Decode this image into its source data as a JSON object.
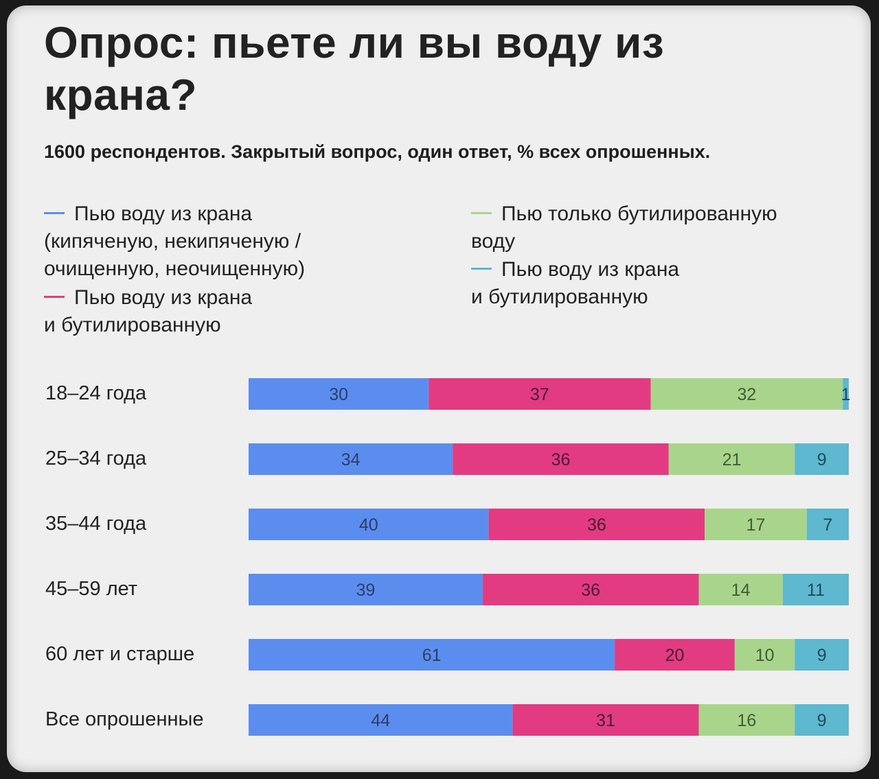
{
  "header": {
    "title": "Опрос: пьете ли вы воду из крана?",
    "subtitle": "1600 респондентов. Закрытый вопрос, один ответ, % всех опрошенных."
  },
  "legend": [
    {
      "label": "Пью воду из крана\n(кипяченую, некипяченую /\nочищенную, неочищенную)",
      "color": "#5b8def"
    },
    {
      "label": "Пью воду из крана\nи бутилированную",
      "color": "#e23b82"
    },
    {
      "label": "Пью только бутилированную\nводу",
      "color": "#a8d58b"
    },
    {
      "label": "Пью воду из крана\nи бутилированную",
      "color": "#5db8d0"
    }
  ],
  "chart_data": {
    "type": "bar",
    "orientation": "horizontal",
    "stacked": true,
    "categories": [
      "18–24 года",
      "25–34 года",
      "35–44 года",
      "45–59 лет",
      "60 лет и старше",
      "Все опрошенные"
    ],
    "series": [
      {
        "name": "Пью воду из крана (кипяченую, некипяченую / очищенную, неочищенную)",
        "color": "#5b8def",
        "values": [
          30,
          34,
          40,
          39,
          61,
          44
        ]
      },
      {
        "name": "Пью воду из крана и бутилированную",
        "color": "#e23b82",
        "values": [
          37,
          36,
          36,
          36,
          20,
          31
        ]
      },
      {
        "name": "Пью только бутилированную воду",
        "color": "#a8d58b",
        "values": [
          32,
          21,
          17,
          14,
          10,
          16
        ]
      },
      {
        "name": "Пью воду из крана и бутилированную",
        "color": "#5db8d0",
        "values": [
          1,
          9,
          7,
          11,
          9,
          9
        ]
      }
    ],
    "xlim": [
      0,
      100
    ],
    "legend_position": "top"
  }
}
